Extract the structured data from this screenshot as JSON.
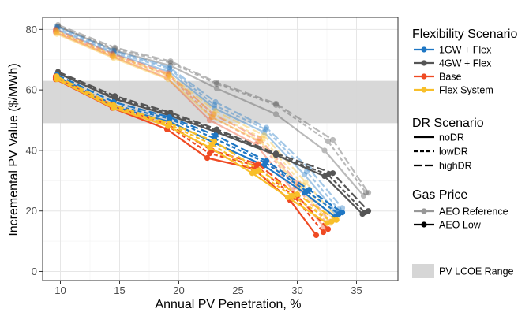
{
  "chart_data": {
    "type": "line",
    "xlabel": "Annual PV Penetration, %",
    "ylabel": "Incremental PV Value ($/MWh)",
    "xlim": [
      8.5,
      38.5
    ],
    "ylim": [
      -3,
      84
    ],
    "x_ticks": [
      10,
      15,
      20,
      25,
      30,
      35
    ],
    "y_ticks": [
      0,
      20,
      40,
      60,
      80
    ],
    "grid": true,
    "legend_position": "right",
    "pv_lcoe_range": [
      49,
      63
    ],
    "colors": {
      "1GW + Flex": "#1f77c4",
      "4GW + Flex": "#555555",
      "Base": "#ef4a23",
      "Flex System": "#f8bf2a",
      "band": "#d6d6d6"
    },
    "series": [
      {
        "flex": "4GW + Flex",
        "dr": "noDR",
        "gas": "AEO Reference",
        "x": [
          9.8,
          14.6,
          19.3,
          23.2,
          28.2,
          32.3,
          35.6
        ],
        "y": [
          81,
          73,
          68,
          60.5,
          52,
          40,
          25
        ]
      },
      {
        "flex": "4GW + Flex",
        "dr": "lowDR",
        "gas": "AEO Reference",
        "x": [
          9.8,
          14.6,
          19.3,
          23.2,
          28.2,
          32.6,
          35.8
        ],
        "y": [
          81,
          73.5,
          69,
          62,
          55,
          43,
          26
        ]
      },
      {
        "flex": "4GW + Flex",
        "dr": "highDR",
        "gas": "AEO Reference",
        "x": [
          9.8,
          14.6,
          19.3,
          23.2,
          28.2,
          33.0,
          36.0
        ],
        "y": [
          81.5,
          74,
          69.5,
          62.5,
          55.5,
          43.5,
          26
        ]
      },
      {
        "flex": "1GW + Flex",
        "dr": "noDR",
        "gas": "AEO Reference",
        "x": [
          9.7,
          14.5,
          19.2,
          23.0,
          27.2,
          30.6,
          33.2
        ],
        "y": [
          80,
          72,
          66,
          54,
          46,
          32,
          20
        ]
      },
      {
        "flex": "1GW + Flex",
        "dr": "lowDR",
        "gas": "AEO Reference",
        "x": [
          9.7,
          14.5,
          19.2,
          23.0,
          27.3,
          30.8,
          33.5
        ],
        "y": [
          80.5,
          72.5,
          67,
          55,
          47,
          33,
          20.5
        ]
      },
      {
        "flex": "1GW + Flex",
        "dr": "highDR",
        "gas": "AEO Reference",
        "x": [
          9.7,
          14.5,
          19.2,
          23.1,
          27.4,
          31.0,
          33.8
        ],
        "y": [
          81,
          73,
          67.5,
          56,
          47.5,
          34,
          21
        ]
      },
      {
        "flex": "Base",
        "dr": "noDR",
        "gas": "AEO Reference",
        "x": [
          9.6,
          14.4,
          19.0,
          22.6,
          26.5,
          29.6,
          32.2
        ],
        "y": [
          79,
          71,
          64,
          50,
          42,
          27,
          15
        ]
      },
      {
        "flex": "Base",
        "dr": "lowDR",
        "gas": "AEO Reference",
        "x": [
          9.6,
          14.4,
          19.1,
          22.8,
          26.7,
          29.9,
          32.5
        ],
        "y": [
          79.5,
          71.5,
          65,
          51,
          43,
          28,
          16
        ]
      },
      {
        "flex": "Base",
        "dr": "highDR",
        "gas": "AEO Reference",
        "x": [
          9.6,
          14.4,
          19.1,
          22.9,
          26.8,
          30.1,
          32.8
        ],
        "y": [
          80,
          72,
          65.5,
          52,
          44,
          29,
          16.5
        ]
      },
      {
        "flex": "Flex System",
        "dr": "noDR",
        "gas": "AEO Reference",
        "x": [
          9.7,
          14.5,
          19.1,
          22.8,
          26.9,
          30.2,
          32.8
        ],
        "y": [
          78.5,
          70.5,
          63.5,
          51,
          43,
          27.5,
          16
        ]
      },
      {
        "flex": "Flex System",
        "dr": "lowDR",
        "gas": "AEO Reference",
        "x": [
          9.7,
          14.5,
          19.2,
          23.0,
          27.1,
          30.5,
          33.1
        ],
        "y": [
          79,
          71,
          64.5,
          52,
          44,
          28.5,
          17
        ]
      },
      {
        "flex": "Flex System",
        "dr": "highDR",
        "gas": "AEO Reference",
        "x": [
          9.7,
          14.5,
          19.2,
          23.1,
          27.2,
          30.7,
          33.4
        ],
        "y": [
          79.5,
          71.5,
          65,
          53,
          45,
          29.5,
          17.5
        ]
      },
      {
        "flex": "4GW + Flex",
        "dr": "noDR",
        "gas": "AEO Low",
        "x": [
          9.8,
          14.6,
          19.3,
          23.2,
          28.2,
          32.3,
          35.5
        ],
        "y": [
          65.5,
          57,
          51.5,
          46,
          38.5,
          31.5,
          19
        ]
      },
      {
        "flex": "4GW + Flex",
        "dr": "lowDR",
        "gas": "AEO Low",
        "x": [
          9.8,
          14.6,
          19.3,
          23.2,
          28.2,
          32.6,
          35.7
        ],
        "y": [
          65.5,
          57.5,
          52,
          46.5,
          38.5,
          32,
          19.5
        ]
      },
      {
        "flex": "4GW + Flex",
        "dr": "highDR",
        "gas": "AEO Low",
        "x": [
          9.8,
          14.6,
          19.3,
          23.2,
          28.2,
          33.0,
          36.0
        ],
        "y": [
          66,
          58,
          52.5,
          47,
          39,
          32.5,
          20
        ]
      },
      {
        "flex": "1GW + Flex",
        "dr": "noDR",
        "gas": "AEO Low",
        "x": [
          9.7,
          14.5,
          19.2,
          23.0,
          27.2,
          30.6,
          33.2
        ],
        "y": [
          64,
          54.5,
          49.5,
          42.5,
          35,
          26,
          18
        ]
      },
      {
        "flex": "1GW + Flex",
        "dr": "lowDR",
        "gas": "AEO Low",
        "x": [
          9.7,
          14.5,
          19.2,
          23.0,
          27.3,
          30.8,
          33.5
        ],
        "y": [
          64.5,
          55,
          50.5,
          44,
          36,
          26.5,
          19
        ]
      },
      {
        "flex": "1GW + Flex",
        "dr": "highDR",
        "gas": "AEO Low",
        "x": [
          9.7,
          14.5,
          19.2,
          23.1,
          27.4,
          31.0,
          33.8
        ],
        "y": [
          65,
          56,
          51,
          45,
          36.5,
          27,
          19.5
        ]
      },
      {
        "flex": "Base",
        "dr": "noDR",
        "gas": "AEO Low",
        "x": [
          9.6,
          14.4,
          19.0,
          22.4,
          26.3,
          29.4,
          31.6
        ],
        "y": [
          63.5,
          54,
          47,
          37.5,
          34,
          23.5,
          12
        ]
      },
      {
        "flex": "Base",
        "dr": "lowDR",
        "gas": "AEO Low",
        "x": [
          9.6,
          14.4,
          19.1,
          22.6,
          26.5,
          29.8,
          32.2
        ],
        "y": [
          64,
          54.5,
          48,
          39,
          35,
          24.5,
          13
        ]
      },
      {
        "flex": "Base",
        "dr": "highDR",
        "gas": "AEO Low",
        "x": [
          9.6,
          14.4,
          19.1,
          22.8,
          26.7,
          30.0,
          32.6
        ],
        "y": [
          64.5,
          55,
          48.5,
          40,
          35.5,
          25,
          14
        ]
      },
      {
        "flex": "Flex System",
        "dr": "noDR",
        "gas": "AEO Low",
        "x": [
          9.7,
          14.5,
          19.1,
          22.6,
          26.2,
          29.2,
          32.5
        ],
        "y": [
          63.5,
          54,
          48,
          41,
          32.5,
          24.5,
          16
        ]
      },
      {
        "flex": "Flex System",
        "dr": "lowDR",
        "gas": "AEO Low",
        "x": [
          9.7,
          14.5,
          19.2,
          22.8,
          26.5,
          29.6,
          32.9
        ],
        "y": [
          64,
          54.5,
          48.5,
          42,
          33,
          25,
          16.5
        ]
      },
      {
        "flex": "Flex System",
        "dr": "highDR",
        "gas": "AEO Low",
        "x": [
          9.7,
          14.5,
          19.2,
          23.0,
          26.8,
          30.0,
          33.3
        ],
        "y": [
          64.5,
          55,
          49,
          43,
          33.5,
          25.5,
          17
        ]
      }
    ]
  },
  "legend": {
    "flex_title": "Flexibility Scenario",
    "flex_items": [
      {
        "label": "1GW + Flex",
        "color": "#1f77c4"
      },
      {
        "label": "4GW + Flex",
        "color": "#555555"
      },
      {
        "label": "Base",
        "color": "#ef4a23"
      },
      {
        "label": "Flex System",
        "color": "#f8bf2a"
      }
    ],
    "dr_title": "DR Scenario",
    "dr_items": [
      {
        "label": "noDR",
        "dash": "solid"
      },
      {
        "label": "lowDR",
        "dash": "dashed"
      },
      {
        "label": "highDR",
        "dash": "longdash"
      }
    ],
    "gas_title": "Gas Price",
    "gas_items": [
      {
        "label": "AEO Reference",
        "style": "faded"
      },
      {
        "label": "AEO Low",
        "style": "solid"
      }
    ],
    "band_label": "PV LCOE Range"
  }
}
